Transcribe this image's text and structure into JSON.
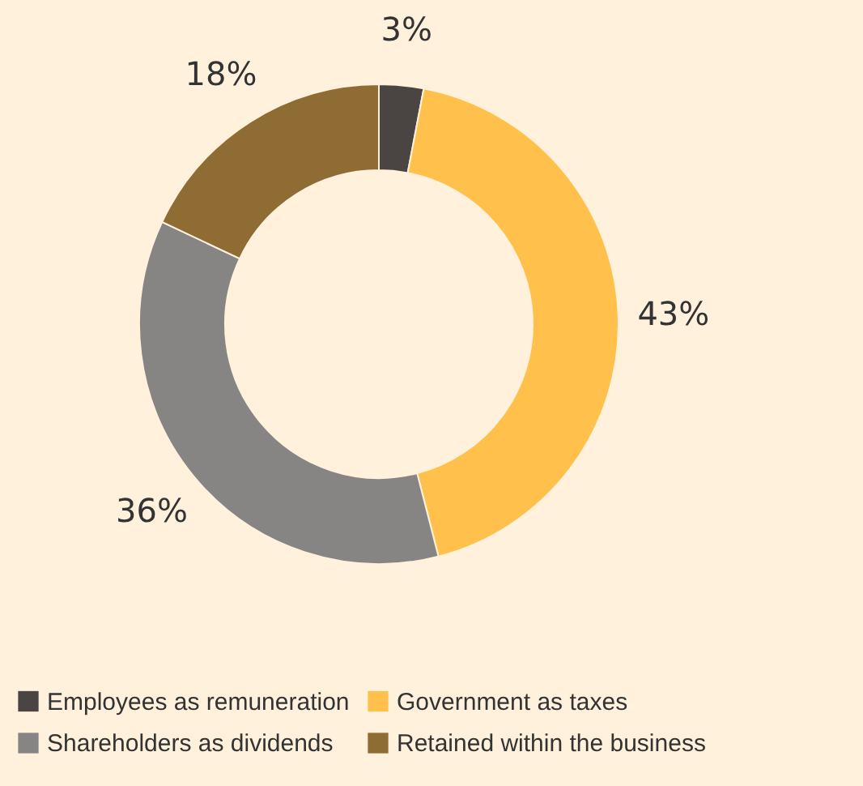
{
  "chart_data": {
    "type": "donut",
    "categories": [
      "Employees as remuneration",
      "Government as taxes",
      "Shareholders as dividends",
      "Retained within the business"
    ],
    "values": [
      3,
      43,
      36,
      18
    ],
    "colors": [
      "#4a4443",
      "#ffc14b",
      "#878584",
      "#8f6c33"
    ],
    "value_labels": [
      "3%",
      "43%",
      "36%",
      "18%"
    ],
    "legend": "bottom"
  }
}
